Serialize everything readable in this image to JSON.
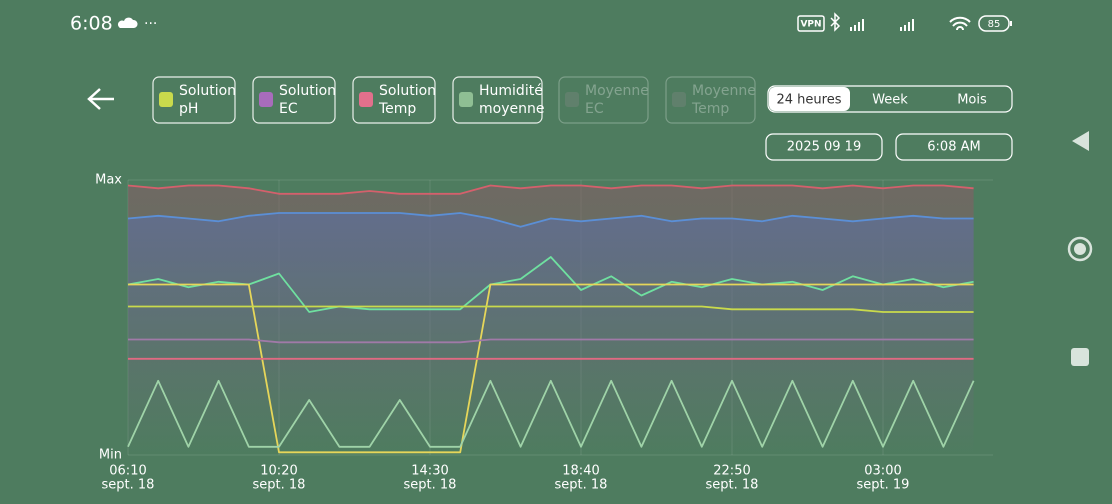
{
  "status": {
    "time": "6:08",
    "dots": "···",
    "vpn": "VPN",
    "battery": "85"
  },
  "legend": [
    {
      "lines": [
        "Solution",
        "pH"
      ],
      "color": "#c9da4c",
      "enabled": true
    },
    {
      "lines": [
        "Solution",
        "EC"
      ],
      "color": "#a86cbc",
      "enabled": true
    },
    {
      "lines": [
        "Solution",
        "Temp"
      ],
      "color": "#e2708c",
      "enabled": true
    },
    {
      "lines": [
        "Humidité",
        "moyenne"
      ],
      "color": "#8fbf94",
      "enabled": true
    },
    {
      "lines": [
        "Moyenne",
        "EC"
      ],
      "color": "#8a8a8a",
      "enabled": false
    },
    {
      "lines": [
        "Moyenne",
        "Temp"
      ],
      "color": "#8a8a8a",
      "enabled": false
    }
  ],
  "range_tabs": {
    "options": [
      "24 heures",
      "Week",
      "Mois"
    ],
    "selected": 0
  },
  "date": "2025 09 19",
  "time": "6:08 AM",
  "chart_data": {
    "type": "line",
    "ylim": [
      0,
      1
    ],
    "yticks": [
      {
        "value": 0,
        "label": "Min"
      },
      {
        "value": 1,
        "label": "Max"
      }
    ],
    "categories": [
      "06:10",
      null,
      null,
      null,
      null,
      "10:20",
      null,
      null,
      null,
      null,
      "14:30",
      null,
      null,
      null,
      null,
      "18:40",
      null,
      null,
      null,
      null,
      "22:50",
      null,
      null,
      null,
      null,
      "03:00",
      null,
      null,
      null
    ],
    "category_dates": [
      "sept. 18",
      null,
      null,
      null,
      null,
      "sept. 18",
      null,
      null,
      null,
      null,
      "sept. 18",
      null,
      null,
      null,
      null,
      "sept. 18",
      null,
      null,
      null,
      null,
      "sept. 18",
      null,
      null,
      null,
      null,
      "sept. 19",
      null,
      null,
      null
    ],
    "series": [
      {
        "color": "#d4606c",
        "area": true,
        "values": [
          0.98,
          0.97,
          0.98,
          0.98,
          0.97,
          0.95,
          0.95,
          0.95,
          0.96,
          0.95,
          0.95,
          0.95,
          0.98,
          0.97,
          0.98,
          0.98,
          0.97,
          0.98,
          0.98,
          0.97,
          0.98,
          0.98,
          0.98,
          0.97,
          0.98,
          0.97,
          0.98,
          0.98,
          0.97
        ]
      },
      {
        "color": "#5b8fd6",
        "area": true,
        "values": [
          0.86,
          0.87,
          0.86,
          0.85,
          0.87,
          0.88,
          0.88,
          0.88,
          0.88,
          0.88,
          0.87,
          0.88,
          0.86,
          0.83,
          0.86,
          0.85,
          0.86,
          0.87,
          0.85,
          0.86,
          0.86,
          0.85,
          0.87,
          0.86,
          0.85,
          0.86,
          0.87,
          0.86,
          0.86
        ]
      },
      {
        "color": "#6fe0a0",
        "area": false,
        "values": [
          0.62,
          0.64,
          0.61,
          0.63,
          0.62,
          0.66,
          0.52,
          0.54,
          0.53,
          0.53,
          0.53,
          0.53,
          0.62,
          0.64,
          0.72,
          0.6,
          0.65,
          0.58,
          0.63,
          0.61,
          0.64,
          0.62,
          0.63,
          0.6,
          0.65,
          0.62,
          0.64,
          0.61,
          0.63
        ]
      },
      {
        "color": "#e6d65a",
        "area": false,
        "values": [
          0.62,
          0.62,
          0.62,
          0.62,
          0.62,
          0.01,
          0.01,
          0.01,
          0.01,
          0.01,
          0.01,
          0.01,
          0.62,
          0.62,
          0.62,
          0.62,
          0.62,
          0.62,
          0.62,
          0.62,
          0.62,
          0.62,
          0.62,
          0.62,
          0.62,
          0.62,
          0.62,
          0.62,
          0.62
        ]
      },
      {
        "color": "#c9da4c",
        "area": false,
        "values": [
          0.54,
          0.54,
          0.54,
          0.54,
          0.54,
          0.54,
          0.54,
          0.54,
          0.54,
          0.54,
          0.54,
          0.54,
          0.54,
          0.54,
          0.54,
          0.54,
          0.54,
          0.54,
          0.54,
          0.54,
          0.53,
          0.53,
          0.53,
          0.53,
          0.53,
          0.52,
          0.52,
          0.52,
          0.52
        ]
      },
      {
        "color": "#a07aa8",
        "area": false,
        "values": [
          0.42,
          0.42,
          0.42,
          0.42,
          0.42,
          0.41,
          0.41,
          0.41,
          0.41,
          0.41,
          0.41,
          0.41,
          0.42,
          0.42,
          0.42,
          0.42,
          0.42,
          0.42,
          0.42,
          0.42,
          0.42,
          0.42,
          0.42,
          0.42,
          0.42,
          0.42,
          0.42,
          0.42,
          0.42
        ]
      },
      {
        "color": "#e06a82",
        "area": false,
        "values": [
          0.35,
          0.35,
          0.35,
          0.35,
          0.35,
          0.35,
          0.35,
          0.35,
          0.35,
          0.35,
          0.35,
          0.35,
          0.35,
          0.35,
          0.35,
          0.35,
          0.35,
          0.35,
          0.35,
          0.35,
          0.35,
          0.35,
          0.35,
          0.35,
          0.35,
          0.35,
          0.35,
          0.35,
          0.35
        ]
      },
      {
        "color": "#9fd3a8",
        "area": false,
        "values": [
          0.03,
          0.27,
          0.03,
          0.27,
          0.03,
          0.03,
          0.2,
          0.03,
          0.03,
          0.2,
          0.03,
          0.03,
          0.27,
          0.03,
          0.27,
          0.03,
          0.27,
          0.03,
          0.27,
          0.03,
          0.27,
          0.03,
          0.27,
          0.03,
          0.27,
          0.03,
          0.27,
          0.03,
          0.27
        ]
      }
    ]
  }
}
